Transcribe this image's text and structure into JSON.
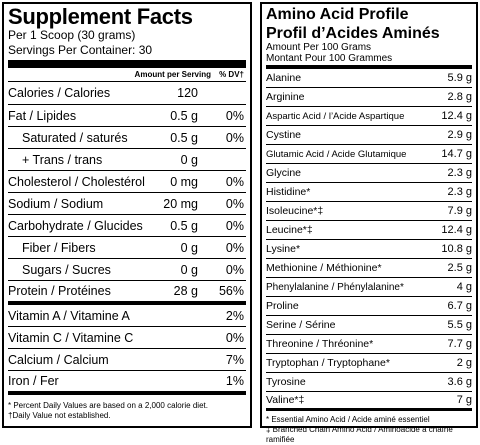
{
  "supplement_facts": {
    "title": "Supplement Facts",
    "serving_size": "Per 1 Scoop (30 grams)",
    "servings_per_container": "Servings Per Container: 30",
    "header_amount": "Amount per Serving",
    "header_dv": "% DV†",
    "rows": [
      {
        "name": "Calories / Calories",
        "amount": "120",
        "dv": ""
      },
      {
        "name": "Fat / Lipides",
        "amount": "0.5 g",
        "dv": "0%"
      },
      {
        "name": "Saturated / saturés",
        "amount": "0.5 g",
        "dv": "0%"
      },
      {
        "name": "+ Trans / trans",
        "amount": "0 g",
        "dv": ""
      },
      {
        "name": "Cholesterol / Cholestérol",
        "amount": "0 mg",
        "dv": "0%"
      },
      {
        "name": "Sodium / Sodium",
        "amount": "20 mg",
        "dv": "0%"
      },
      {
        "name": "Carbohydrate / Glucides",
        "amount": "0.5 g",
        "dv": "0%"
      },
      {
        "name": "Fiber / Fibers",
        "amount": "0 g",
        "dv": "0%"
      },
      {
        "name": "Sugars / Sucres",
        "amount": "0 g",
        "dv": "0%"
      },
      {
        "name": "Protein / Protéines",
        "amount": "28 g",
        "dv": "56%"
      },
      {
        "name": "Vitamin A / Vitamine A",
        "amount": "",
        "dv": "2%"
      },
      {
        "name": "Vitamin C / Vitamine C",
        "amount": "",
        "dv": "0%"
      },
      {
        "name": "Calcium / Calcium",
        "amount": "",
        "dv": "7%"
      },
      {
        "name": "Iron / Fer",
        "amount": "",
        "dv": "1%"
      }
    ],
    "footnote_1": "* Percent Daily Values are based on a 2,000 calorie diet.",
    "footnote_2": "†Daily Value not established."
  },
  "amino_acid_profile": {
    "title_en": "Amino Acid Profile",
    "title_fr": "Profil d’Acides Aminés",
    "per_en": "Amount Per 100 Grams",
    "per_fr": "Montant Pour 100 Grammes",
    "rows": [
      {
        "name": "Alanine",
        "value": "5.9 g"
      },
      {
        "name": "Arginine",
        "value": "2.8 g"
      },
      {
        "name": "Aspartic Acid / l’Acide Aspartique",
        "value": "12.4 g"
      },
      {
        "name": "Cystine",
        "value": "2.9 g"
      },
      {
        "name": "Glutamic Acid / Acide Glutamique",
        "value": "14.7 g"
      },
      {
        "name": "Glycine",
        "value": "2.3 g"
      },
      {
        "name": "Histidine*",
        "value": "2.3 g"
      },
      {
        "name": "Isoleucine*‡",
        "value": "7.9 g"
      },
      {
        "name": "Leucine*‡",
        "value": "12.4 g"
      },
      {
        "name": "Lysine*",
        "value": "10.8 g"
      },
      {
        "name": "Methionine / Méthionine*",
        "value": "2.5 g"
      },
      {
        "name": "Phenylalanine / Phénylalanine*",
        "value": "4 g"
      },
      {
        "name": "Proline",
        "value": "6.7 g"
      },
      {
        "name": "Serine / Sérine",
        "value": "5.5 g"
      },
      {
        "name": "Threonine / Thréonine*",
        "value": "7.7 g"
      },
      {
        "name": "Tryptophan / Tryptophane*",
        "value": "2 g"
      },
      {
        "name": "Tyrosine",
        "value": "3.6 g"
      },
      {
        "name": "Valine*‡",
        "value": "7 g"
      }
    ],
    "footnote_1": "* Essential Amino Acid / Acide aminé essentiel",
    "footnote_2": "‡ Branched Chain Amino Acid / Aminoacide à chaîne ramifiée"
  }
}
